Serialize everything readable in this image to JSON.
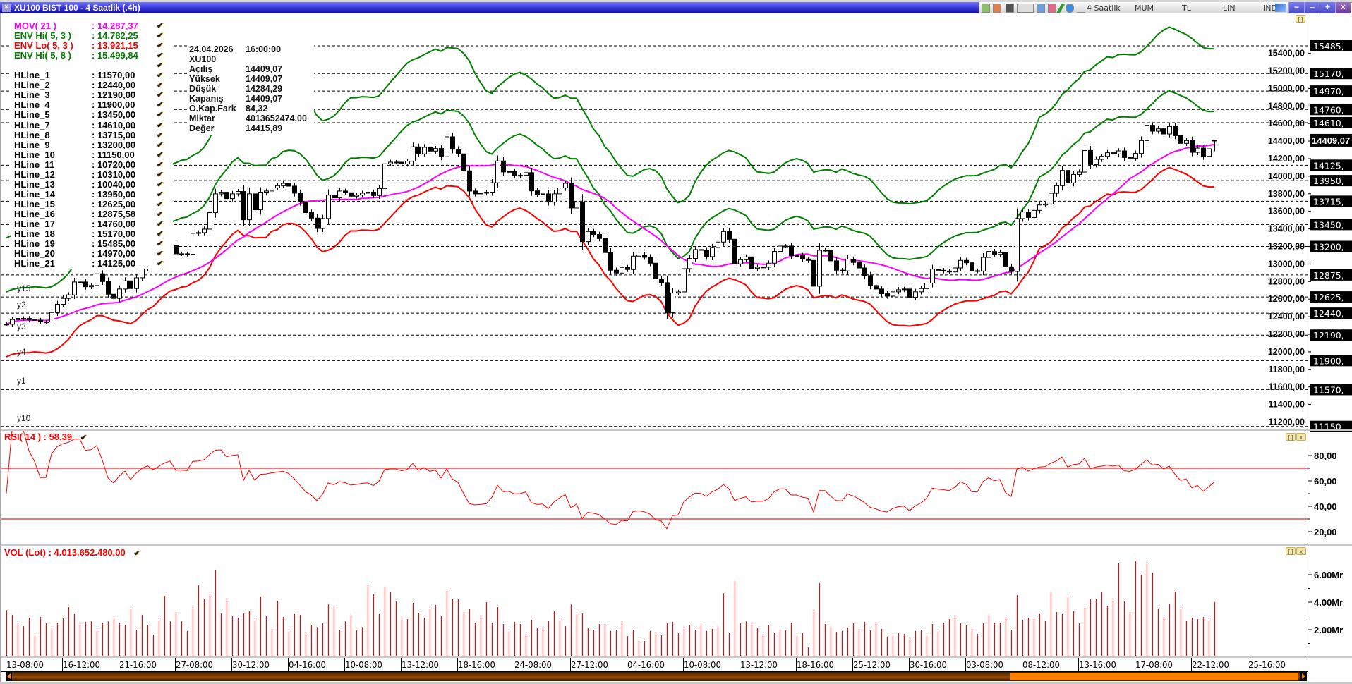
{
  "window": {
    "title": "XU100 BIST 100 - 4 Saatlik (.4h)"
  },
  "toolbar": {
    "icons": [
      "indicator-icon",
      "template-icon",
      "layout-icon",
      "formula-icon",
      "chart-settings-icon",
      "compare-icon",
      "pencil-icon",
      "move-icon",
      "wave-icon"
    ],
    "period": "4 Saatlik",
    "chart_type": "MUM",
    "currency": "TL",
    "scale": "LIN",
    "mode": "IND",
    "window_buttons": [
      "−",
      "‒",
      "+",
      "×"
    ]
  },
  "colors": {
    "mov": "#ff00ff",
    "env_hi": "#008000",
    "env_lo": "#ff0000",
    "rsi": "#ff0000",
    "volume": "#ff0000",
    "rsi_bands": "#ff7070",
    "title_bar": "#3434d8",
    "scroll_thumb": "#ff8000"
  },
  "legend": {
    "indicators": [
      {
        "label": "MOV( 21 )",
        "value": ": 14.287,37",
        "color": "#ff00ff"
      },
      {
        "label": "ENV Hi( 5, 3 )",
        "value": ": 14.782,25",
        "color": "#008000"
      },
      {
        "label": "ENV Lo( 5, 3 )",
        "value": ": 13.921,15",
        "color": "#ff0000"
      },
      {
        "label": "ENV Hi( 5, 8 )",
        "value": ": 15.499,84",
        "color": "#008000"
      }
    ],
    "hlines": [
      {
        "label": "HLine_1",
        "value": ": 11570,00",
        "price": 11570,
        "axis": "11570,00"
      },
      {
        "label": "HLine_2",
        "value": ": 12440,00",
        "price": 12440,
        "axis": "12440,00"
      },
      {
        "label": "HLine_3",
        "value": ": 12190,00",
        "price": 12190,
        "axis": "12190,00"
      },
      {
        "label": "HLine_4",
        "value": ": 11900,00",
        "price": 11900,
        "axis": "11900,00"
      },
      {
        "label": "HLine_5",
        "value": ": 13450,00",
        "price": 13450,
        "axis": "13450,00"
      },
      {
        "label": "HLine_7",
        "value": ": 14610,00",
        "price": 14610,
        "axis": "14610,00"
      },
      {
        "label": "HLine_8",
        "value": ": 13715,00",
        "price": 13715,
        "axis": "13715,00"
      },
      {
        "label": "HLine_9",
        "value": ": 13200,00",
        "price": 13200,
        "axis": "13200,00"
      },
      {
        "label": "HLine_10",
        "value": ": 11150,00",
        "price": 11150,
        "axis": "11150,00"
      },
      {
        "label": "HLine_11",
        "value": ": 10720,00",
        "price": 10720,
        "axis": "10720,00"
      },
      {
        "label": "HLine_12",
        "value": ": 10310,00",
        "price": 10310,
        "axis": "10310,00"
      },
      {
        "label": "HLine_13",
        "value": ": 10040,00",
        "price": 10040,
        "axis": "10040,00"
      },
      {
        "label": "HLine_14",
        "value": ": 13950,00",
        "price": 13950,
        "axis": "13950,00"
      },
      {
        "label": "HLine_15",
        "value": ": 12625,00",
        "price": 12625,
        "axis": "12625,00"
      },
      {
        "label": "HLine_16",
        "value": ": 12875,58",
        "price": 12875.58,
        "axis": "12875,58"
      },
      {
        "label": "HLine_17",
        "value": ": 14760,00",
        "price": 14760,
        "axis": "14760,00"
      },
      {
        "label": "HLine_18",
        "value": ": 15170,00",
        "price": 15170,
        "axis": "15170,00"
      },
      {
        "label": "HLine_19",
        "value": ": 15485,00",
        "price": 15485,
        "axis": "15485,00"
      },
      {
        "label": "HLine_20",
        "value": ": 14970,00",
        "price": 14970,
        "axis": "14970,00"
      },
      {
        "label": "HLine_21",
        "value": ": 14125,00",
        "price": 14125,
        "axis": "14125,00"
      }
    ],
    "line_tags": [
      {
        "text": "y15",
        "price": 12625
      },
      {
        "text": "y2",
        "price": 12440
      },
      {
        "text": "y3",
        "price": 12190
      },
      {
        "text": "y4",
        "price": 11900
      },
      {
        "text": "y1",
        "price": 11570
      },
      {
        "text": "y10",
        "price": 11150
      }
    ]
  },
  "info": {
    "date": "24.04.2026",
    "time": "16:00:00",
    "symbol": "XU100",
    "rows": [
      {
        "label": "Açılış",
        "value": "14409,07"
      },
      {
        "label": "Yüksek",
        "value": "14409,07"
      },
      {
        "label": "Düşük",
        "value": "14284,29"
      },
      {
        "label": "Kapanış",
        "value": "14409,07"
      },
      {
        "label": "Ö.Kap.Fark",
        "value": "84,32"
      },
      {
        "label": "Miktar",
        "value": "4013652474,00"
      },
      {
        "label": "Değer",
        "value": "14415,89"
      }
    ]
  },
  "current_price": {
    "value": "14409,07",
    "price": 14409.07
  },
  "rsi_panel": {
    "label": "RSI( 14 ) : 58,39",
    "period": 14,
    "bands": [
      70,
      30
    ],
    "ticks": [
      "80,00",
      "60,00",
      "40,00",
      "20,00"
    ]
  },
  "volume_panel": {
    "label": "VOL (Lot) : 4.013.652.480,00",
    "ticks": [
      "6.00Mr",
      "4.00Mr",
      "2.00Mr"
    ]
  },
  "chart_data": {
    "type": "candlestick",
    "symbol": "XU100",
    "interval": "4h",
    "price_ticks": [
      "15400,00",
      "15200,00",
      "15000,00",
      "14800,00",
      "14600,00",
      "14400,00",
      "14200,00",
      "14000,00",
      "13800,00",
      "13600,00",
      "13400,00",
      "13200,00",
      "13000,00",
      "12800,00",
      "12600,00",
      "12400,00",
      "12200,00",
      "12000,00",
      "11800,00",
      "11600,00",
      "11400,00",
      "11200,00"
    ],
    "x_labels": [
      "13-08:00",
      "16-12:00",
      "21-16:00",
      "27-08:00",
      "30-12:00",
      "04-16:00",
      "10-08:00",
      "13-12:00",
      "18-16:00",
      "24-08:00",
      "27-12:00",
      "04-16:00",
      "10-08:00",
      "13-12:00",
      "18-16:00",
      "25-12:00",
      "30-16:00",
      "03-08:00",
      "08-12:00",
      "13-16:00",
      "17-08:00",
      "22-12:00",
      "25-16:00"
    ],
    "x_label_every_bars": 10,
    "indicators": {
      "mov_period": 21,
      "env_period": 5,
      "env_inner_pct": 3,
      "env_outer_pct": 8
    },
    "last_bar": {
      "open": 14409.07,
      "high": 14409.07,
      "low": 14284.29,
      "close": 14409.07
    },
    "close": [
      12313,
      12367,
      12380,
      12380,
      12367,
      12358,
      12340,
      12340,
      12447,
      12541,
      12608,
      12648,
      12795,
      12795,
      12741,
      12755,
      12889,
      12800,
      12656,
      12608,
      12715,
      12808,
      12720,
      12843,
      12950,
      13020,
      12980,
      13060,
      13150,
      13210,
      13116,
      13116,
      13111,
      13349,
      13357,
      13397,
      13585,
      13799,
      13817,
      13745,
      13799,
      13826,
      13504,
      13799,
      13617,
      13818,
      13831,
      13866,
      13892,
      13919,
      13887,
      13807,
      13705,
      13585,
      13523,
      13405,
      13518,
      13785,
      13753,
      13831,
      13812,
      13772,
      13785,
      13807,
      13818,
      13780,
      13860,
      14141,
      14160,
      14160,
      14139,
      14171,
      14334,
      14254,
      14329,
      14286,
      14315,
      14222,
      14449,
      14307,
      14254,
      14061,
      13831,
      13799,
      13807,
      13818,
      13925,
      14174,
      14048,
      14053,
      14005,
      14010,
      14040,
      13833,
      13793,
      13799,
      13705,
      13799,
      13866,
      13919,
      13638,
      13705,
      13255,
      13370,
      13336,
      13290,
      13130,
      12929,
      12897,
      12961,
      12937,
      13089,
      13103,
      13076,
      13009,
      12830,
      12787,
      12447,
      12669,
      12682,
      12947,
      13063,
      13164,
      13156,
      13084,
      13188,
      13250,
      13370,
      13282,
      13001,
      13049,
      13081,
      12950,
      12964,
      12964,
      13009,
      13143,
      13204,
      13204,
      13095,
      13095,
      13057,
      13041,
      12747,
      13156,
      13156,
      13036,
      12929,
      12921,
      13055,
      13017,
      12955,
      12867,
      12755,
      12715,
      12661,
      12634,
      12683,
      12707,
      12715,
      12621,
      12683,
      12720,
      12782,
      12942,
      12928,
      12920,
      12909,
      12955,
      13041,
      13014,
      12923,
      12920,
      13075,
      13142,
      13110,
      13129,
      12968,
      12915,
      13517,
      13592,
      13530,
      13611,
      13672,
      13683,
      13806,
      13892,
      14066,
      13924,
      14020,
      14047,
      14293,
      14133,
      14192,
      14226,
      14267,
      14253,
      14288,
      14213,
      14205,
      14259,
      14406,
      14580,
      14513,
      14540,
      14481,
      14566,
      14462,
      14374,
      14406,
      14272,
      14320,
      14226,
      14312,
      14409.07
    ],
    "volume_mr": [
      3.43,
      3.07,
      2.51,
      2.25,
      2.87,
      1.64,
      2.92,
      2.46,
      2.15,
      2.51,
      2.82,
      3.64,
      3.13,
      2.46,
      2.56,
      2.61,
      2.0,
      2.51,
      2.61,
      2.87,
      2.51,
      2.36,
      3.54,
      2.0,
      3.07,
      2.31,
      1.64,
      2.72,
      4.46,
      2.61,
      3.28,
      2.61,
      1.9,
      3.64,
      5.23,
      4.2,
      4.61,
      6.36,
      3.18,
      4.2,
      2.97,
      2.87,
      3.18,
      3.33,
      2.72,
      4.41,
      2.97,
      2.05,
      4.1,
      2.92,
      1.9,
      3.13,
      3.07,
      1.79,
      2.31,
      2.2,
      2.46,
      3.84,
      3.64,
      2.0,
      2.61,
      3.07,
      1.95,
      2.2,
      5.23,
      4.56,
      3.13,
      5.13,
      4.72,
      4.05,
      2.87,
      2.77,
      3.95,
      3.23,
      2.87,
      3.54,
      3.79,
      2.97,
      4.82,
      4.25,
      4.2,
      3.28,
      3.49,
      2.51,
      2.97,
      4.0,
      2.51,
      3.64,
      2.41,
      1.9,
      2.56,
      2.41,
      1.69,
      2.72,
      2.1,
      2.1,
      2.67,
      3.33,
      2.72,
      2.25,
      3.84,
      3.13,
      3.18,
      2.1,
      2.0,
      2.41,
      2.41,
      1.9,
      2.0,
      2.61,
      1.54,
      2.0,
      1.18,
      1.18,
      1.9,
      1.79,
      1.59,
      2.46,
      2.56,
      1.74,
      2.2,
      2.31,
      2.0,
      2.36,
      1.9,
      2.05,
      2.25,
      4.66,
      1.79,
      5.54,
      2.46,
      2.61,
      2.46,
      2.1,
      1.69,
      2.31,
      1.79,
      1.95,
      1.95,
      2.51,
      1.64,
      1.74,
      0.72,
      3.43,
      5.38,
      2.41,
      2.25,
      1.84,
      1.9,
      2.15,
      2.46,
      2.05,
      2.56,
      1.95,
      2.56,
      2.05,
      1.49,
      1.64,
      1.74,
      1.69,
      1.38,
      1.9,
      2.0,
      1.64,
      2.41,
      1.9,
      2.51,
      2.77,
      2.97,
      2.46,
      2.31,
      2.05,
      1.69,
      2.46,
      3.07,
      2.51,
      2.51,
      2.92,
      2.0,
      4.51,
      2.72,
      2.87,
      2.77,
      3.13,
      2.67,
      4.72,
      3.28,
      3.13,
      4.41,
      3.33,
      2.46,
      3.59,
      4.2,
      4.25,
      4.72,
      3.74,
      4.25,
      6.82,
      4.05,
      3.28,
      6.97,
      6.0,
      6.82,
      6.15,
      3.54,
      2.92,
      3.9,
      4.77,
      3.54,
      2.67,
      2.87,
      2.77,
      2.92,
      2.72,
      4.013652
    ]
  }
}
